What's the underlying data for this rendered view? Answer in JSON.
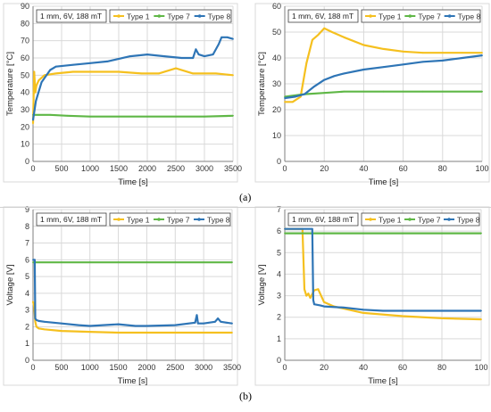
{
  "labels": {
    "a": "(a)",
    "b": "(b)"
  },
  "chart_data": [
    {
      "type": "line",
      "panel": "a-left",
      "annotation": "1 mm, 6V, 188 mT",
      "xlabel": "Time    [s]",
      "ylabel": "Temperature    [°C]",
      "xlim": [
        0,
        3500
      ],
      "ylim": [
        0,
        90
      ],
      "xticks": [
        0,
        500,
        1000,
        1500,
        2000,
        2500,
        3000,
        3500
      ],
      "yticks": [
        0,
        10,
        20,
        30,
        40,
        50,
        60,
        70,
        80,
        90
      ],
      "grid": true,
      "legend": "top",
      "series": [
        {
          "name": "Type 1",
          "color": "#f5c01f",
          "x": [
            0,
            20,
            40,
            60,
            100,
            200,
            400,
            700,
            1000,
            1500,
            1900,
            2200,
            2500,
            2800,
            3200,
            3500
          ],
          "y": [
            22,
            52,
            40,
            44,
            47,
            50,
            51,
            52,
            52,
            52,
            51,
            51,
            54,
            51,
            51,
            50
          ]
        },
        {
          "name": "Type 7",
          "color": "#5fb746",
          "x": [
            0,
            100,
            300,
            600,
            1000,
            1500,
            2000,
            2500,
            3000,
            3500
          ],
          "y": [
            27,
            27,
            27,
            26.5,
            26,
            26,
            26,
            26,
            26,
            26.5
          ]
        },
        {
          "name": "Type 8",
          "color": "#2e75b6",
          "x": [
            0,
            50,
            150,
            300,
            400,
            700,
            1000,
            1300,
            1700,
            2000,
            2300,
            2600,
            2800,
            2850,
            2900,
            3000,
            3150,
            3250,
            3300,
            3400,
            3500
          ],
          "y": [
            24,
            35,
            46,
            53,
            55,
            56,
            57,
            58,
            61,
            62,
            61,
            60,
            60,
            65,
            62,
            61,
            62,
            68,
            72,
            72,
            71
          ]
        }
      ]
    },
    {
      "type": "line",
      "panel": "a-right",
      "annotation": "1 mm, 6V, 188 mT",
      "xlabel": "Time    [s]",
      "ylabel": "Temperature    [°C]",
      "xlim": [
        0,
        100
      ],
      "ylim": [
        0,
        60
      ],
      "xticks": [
        0,
        20,
        40,
        60,
        80,
        100
      ],
      "yticks": [
        0,
        10,
        20,
        30,
        40,
        50,
        60
      ],
      "grid": true,
      "legend": "top",
      "series": [
        {
          "name": "Type 1",
          "color": "#f5c01f",
          "x": [
            0,
            4,
            8,
            11,
            14,
            17,
            20,
            24,
            30,
            40,
            50,
            60,
            70,
            80,
            90,
            100
          ],
          "y": [
            23,
            23,
            25,
            38,
            47,
            49,
            51.5,
            50,
            48,
            45,
            43.5,
            42.5,
            42,
            42,
            42,
            42
          ]
        },
        {
          "name": "Type 7",
          "color": "#5fb746",
          "x": [
            0,
            10,
            20,
            30,
            50,
            70,
            100
          ],
          "y": [
            25,
            26,
            26.5,
            27,
            27,
            27,
            27
          ]
        },
        {
          "name": "Type 8",
          "color": "#2e75b6",
          "x": [
            0,
            5,
            10,
            15,
            20,
            25,
            30,
            40,
            50,
            60,
            70,
            80,
            90,
            100
          ],
          "y": [
            24.5,
            25,
            26,
            29,
            31.5,
            33,
            34,
            35.5,
            36.5,
            37.5,
            38.5,
            39,
            40,
            41
          ]
        }
      ]
    },
    {
      "type": "line",
      "panel": "b-left",
      "annotation": "1 mm, 6V, 188 mT",
      "xlabel": "Time    [s]",
      "ylabel": "Voltage    [V]",
      "xlim": [
        0,
        3500
      ],
      "ylim": [
        0,
        9
      ],
      "xticks": [
        0,
        500,
        1000,
        1500,
        2000,
        2500,
        3000,
        3500
      ],
      "yticks": [
        0,
        1,
        2,
        3,
        4,
        5,
        6,
        7,
        8,
        9
      ],
      "grid": true,
      "legend": "top",
      "series": [
        {
          "name": "Type 1",
          "color": "#f5c01f",
          "x": [
            0,
            20,
            40,
            60,
            100,
            200,
            500,
            1000,
            1500,
            2000,
            2500,
            3000,
            3500
          ],
          "y": [
            3.5,
            3.2,
            2.3,
            2.0,
            1.9,
            1.85,
            1.75,
            1.7,
            1.65,
            1.65,
            1.65,
            1.65,
            1.65
          ]
        },
        {
          "name": "Type 7",
          "color": "#5fb746",
          "x": [
            0,
            500,
            1000,
            1500,
            2000,
            2500,
            3000,
            3500
          ],
          "y": [
            5.85,
            5.85,
            5.85,
            5.85,
            5.85,
            5.85,
            5.85,
            5.85
          ]
        },
        {
          "name": "Type 8",
          "color": "#2e75b6",
          "x": [
            0,
            30,
            40,
            60,
            100,
            200,
            500,
            800,
            1000,
            1500,
            1800,
            2000,
            2500,
            2850,
            2880,
            2900,
            3000,
            3200,
            3250,
            3300,
            3500
          ],
          "y": [
            6.0,
            6.0,
            2.5,
            2.4,
            2.35,
            2.3,
            2.2,
            2.1,
            2.05,
            2.15,
            2.05,
            2.05,
            2.1,
            2.25,
            2.7,
            2.2,
            2.2,
            2.3,
            2.5,
            2.3,
            2.2
          ]
        }
      ]
    },
    {
      "type": "line",
      "panel": "b-right",
      "annotation": "1 mm, 6V, 188 mT",
      "xlabel": "Time    [s]",
      "ylabel": "Voltage    [V]",
      "xlim": [
        0,
        100
      ],
      "ylim": [
        0,
        7
      ],
      "xticks": [
        0,
        20,
        40,
        60,
        80,
        100
      ],
      "yticks": [
        0,
        1,
        2,
        3,
        4,
        5,
        6,
        7
      ],
      "grid": true,
      "legend": "top",
      "series": [
        {
          "name": "Type 1",
          "color": "#f5c01f",
          "x": [
            0,
            9,
            10,
            11,
            12,
            13,
            15,
            17,
            18,
            20,
            25,
            40,
            60,
            80,
            100
          ],
          "y": [
            6.1,
            6.1,
            3.3,
            3.0,
            3.1,
            2.9,
            3.25,
            3.3,
            3.1,
            2.7,
            2.5,
            2.2,
            2.05,
            1.95,
            1.9
          ]
        },
        {
          "name": "Type 7",
          "color": "#5fb746",
          "x": [
            0,
            20,
            40,
            60,
            80,
            100
          ],
          "y": [
            5.9,
            5.9,
            5.9,
            5.9,
            5.9,
            5.9
          ]
        },
        {
          "name": "Type 8",
          "color": "#2e75b6",
          "x": [
            0,
            14,
            14.5,
            15,
            18,
            20,
            30,
            40,
            50,
            60,
            70,
            80,
            90,
            100
          ],
          "y": [
            6.1,
            6.1,
            2.8,
            2.6,
            2.55,
            2.5,
            2.45,
            2.35,
            2.3,
            2.3,
            2.3,
            2.3,
            2.3,
            2.3
          ]
        }
      ]
    }
  ]
}
